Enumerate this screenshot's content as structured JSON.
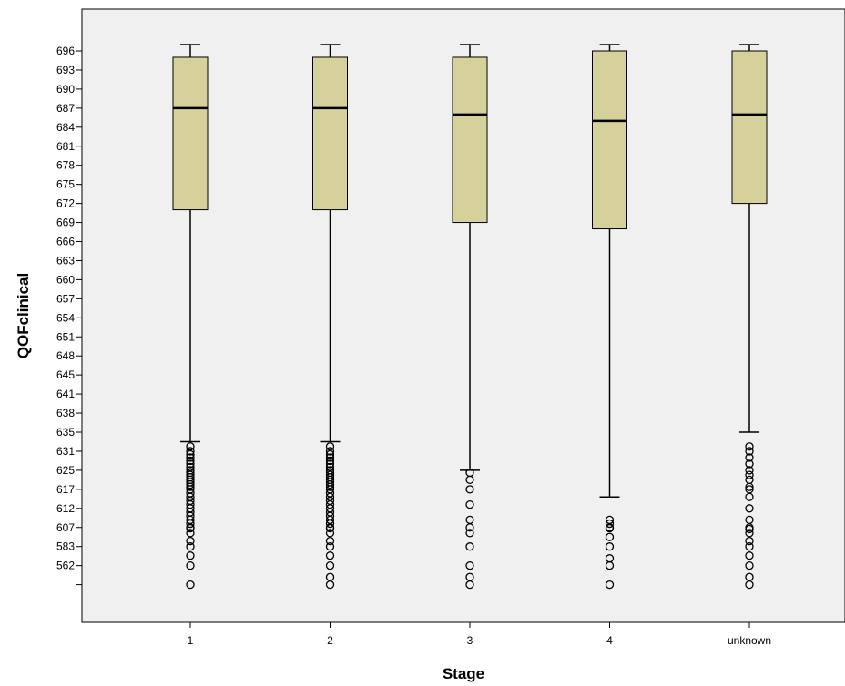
{
  "chart_data": {
    "type": "boxplot",
    "title": "",
    "xlabel": "Stage",
    "ylabel": "QOFclinical",
    "y_tick_labels": [
      "696",
      "693",
      "690",
      "687",
      "684",
      "681",
      "678",
      "675",
      "672",
      "669",
      "666",
      "663",
      "660",
      "657",
      "654",
      "651",
      "648",
      "645",
      "641",
      "638",
      "635",
      "631",
      "625",
      "617",
      "612",
      "607",
      "583",
      "562",
      ""
    ],
    "colors": {
      "plot_bg": "#f0f0f0",
      "box_fill": "#d6d09a",
      "stroke": "#000000"
    },
    "grid": false,
    "legend": "none",
    "categories": [
      "1",
      "2",
      "3",
      "4",
      "unknown"
    ],
    "series": [
      {
        "category": "1",
        "upper_whisker": 697,
        "q3": 695,
        "median": 687,
        "q1": 671,
        "lower_whisker": 633,
        "outliers": [
          632,
          631,
          630,
          629,
          628,
          627,
          626,
          625,
          624,
          623,
          622,
          621,
          620,
          619,
          618,
          617,
          616,
          615,
          614,
          613,
          612,
          611,
          610,
          609,
          608,
          607,
          606,
          600,
          590,
          583,
          573,
          562,
          540
        ]
      },
      {
        "category": "2",
        "upper_whisker": 697,
        "q3": 695,
        "median": 687,
        "q1": 671,
        "lower_whisker": 633,
        "outliers": [
          632,
          631,
          630,
          629,
          628,
          627,
          626,
          625,
          624,
          623,
          622,
          621,
          620,
          619,
          618,
          617,
          616,
          615,
          614,
          613,
          612,
          611,
          610,
          609,
          608,
          607,
          606,
          600,
          590,
          583,
          573,
          562,
          550,
          540
        ]
      },
      {
        "category": "3",
        "upper_whisker": 697,
        "q3": 695,
        "median": 686,
        "q1": 669,
        "lower_whisker": 625,
        "outliers": [
          624,
          621,
          617,
          613,
          609,
          607,
          600,
          583,
          562,
          550,
          540
        ]
      },
      {
        "category": "4",
        "upper_whisker": 697,
        "q3": 696,
        "median": 685,
        "q1": 668,
        "lower_whisker": 615,
        "outliers": [
          609,
          608,
          607,
          606,
          595,
          583,
          570,
          562,
          540
        ]
      },
      {
        "category": "unknown",
        "upper_whisker": 697,
        "q3": 696,
        "median": 686,
        "q1": 672,
        "lower_whisker": 635,
        "outliers": [
          632,
          631,
          629,
          627,
          625,
          623,
          621,
          618,
          617,
          615,
          612,
          609,
          607,
          605,
          600,
          590,
          583,
          573,
          562,
          550,
          540
        ]
      }
    ]
  }
}
